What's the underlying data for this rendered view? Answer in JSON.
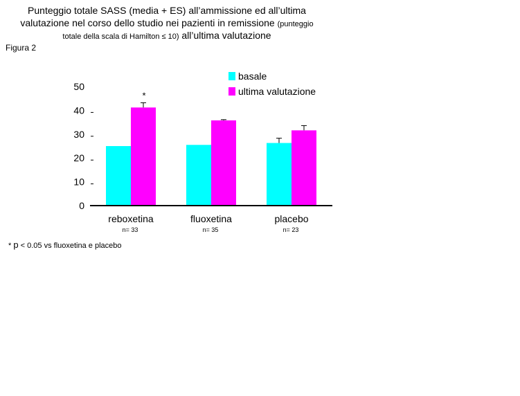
{
  "figure_label": "Figura 2",
  "title": {
    "line1": "Punteggio totale SASS (media + ES) all’ammissione ed all’ultima",
    "line2_main": "valutazione nel corso dello studio nei pazienti in remissione",
    "line2_small": "(punteggio",
    "line3_small": "totale della scala di Hamilton ≤ 10)",
    "line3_main": "all’ultima valutazione"
  },
  "footnote": {
    "star": "*",
    "p": "p",
    "rest": "< 0.05 vs fluoxetina e placebo"
  },
  "colors": {
    "basale": "#00FFFF",
    "ultima": "#FF00FF",
    "axis": "#000000",
    "background": "#FFFFFF"
  },
  "chart_data": {
    "type": "bar",
    "categories": [
      "reboxetina",
      "fluoxetina",
      "placebo"
    ],
    "sample_sizes": [
      "n= 33",
      "n= 35",
      "n= 23"
    ],
    "series": [
      {
        "name": "basale",
        "values": [
          25,
          25.5,
          26.3
        ],
        "errors": [
          0,
          0,
          2
        ]
      },
      {
        "name": "ultima valutazione",
        "values": [
          41.2,
          35.8,
          31.6
        ],
        "errors": [
          2,
          0.3,
          2
        ]
      }
    ],
    "annotations": [
      {
        "category": "reboxetina",
        "series": "ultima valutazione",
        "text": "*"
      }
    ],
    "yticks": [
      "0",
      "10",
      "20",
      "30",
      "40",
      "50"
    ],
    "ylim": [
      0,
      50
    ],
    "grid": false,
    "legend_position": "top-right"
  }
}
